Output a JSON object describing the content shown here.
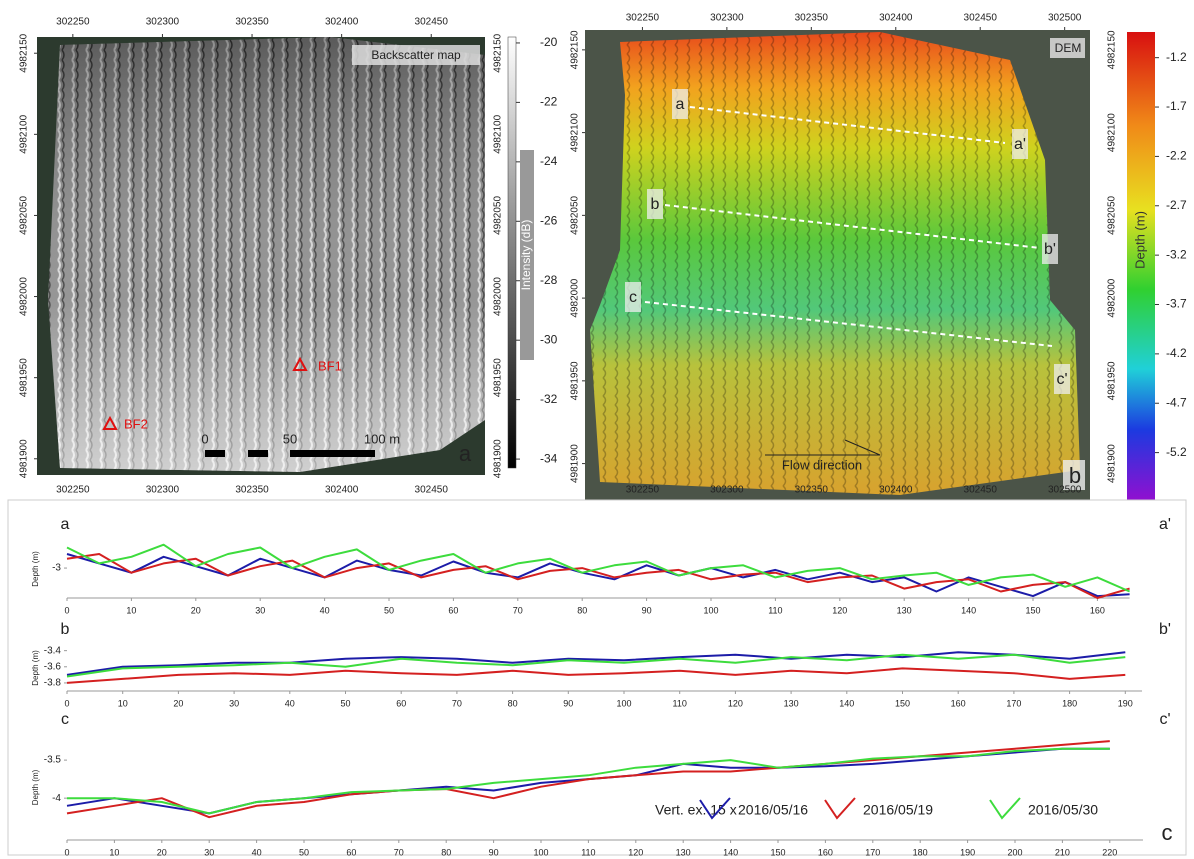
{
  "backscatter_map": {
    "title": "Backscatter map",
    "panel": "a",
    "xlim": [
      302230,
      302480
    ],
    "xticks": [
      302250,
      302300,
      302350,
      302400,
      302450
    ],
    "ylim": [
      4982160,
      4981890
    ],
    "yticks": [
      4982150,
      4982100,
      4982050,
      4982000,
      4981950,
      4981900
    ],
    "markers": [
      "BF1",
      "BF2"
    ],
    "scale_bar": {
      "ticks": [
        0,
        50
      ],
      "label": "100 m"
    },
    "colorbar": {
      "label": "Intensity (dB)",
      "lim": [
        -19.8,
        -34.3
      ],
      "ticks": [
        -20,
        -22,
        -24,
        -26,
        -28,
        -30,
        -32,
        -34
      ]
    }
  },
  "dem": {
    "title": "DEM",
    "panel": "b",
    "xlim": [
      302216,
      302515
    ],
    "xticks": [
      302250,
      302300,
      302350,
      302400,
      302450,
      302500
    ],
    "ylim": [
      4982162,
      4981878
    ],
    "yticks": [
      4982150,
      4982100,
      4982050,
      4982000,
      4981950,
      4981900
    ],
    "profile_ends": [
      "a",
      "a'",
      "b",
      "b'",
      "c",
      "c'"
    ],
    "annotation": "Flow direction",
    "colorbar": {
      "label": "Depth (m)",
      "lim": [
        -0.94,
        -5.68
      ],
      "ticks": [
        -1.2,
        -1.7,
        -2.2,
        -2.7,
        -3.2,
        -3.7,
        -4.2,
        -4.7,
        -5.2
      ]
    }
  },
  "chart_data": [
    {
      "type": "line",
      "start_label": "a",
      "end_label": "a'",
      "y_label": "Depth (m)",
      "x": [
        0,
        5,
        10,
        15,
        20,
        25,
        30,
        35,
        40,
        45,
        50,
        55,
        60,
        65,
        70,
        75,
        80,
        85,
        90,
        95,
        100,
        105,
        110,
        115,
        120,
        125,
        130,
        135,
        140,
        145,
        150,
        155,
        160,
        165
      ],
      "xlim": [
        0,
        165
      ],
      "xticks": [
        0,
        10,
        20,
        30,
        40,
        50,
        60,
        70,
        80,
        90,
        100,
        110,
        120,
        130,
        140,
        150,
        160
      ],
      "ylim": [
        -3.32,
        -2.7
      ],
      "yticks": [
        -3
      ],
      "series": [
        {
          "color": "#1c1ca8",
          "values": [
            -2.85,
            -2.95,
            -3.05,
            -2.88,
            -2.98,
            -3.08,
            -2.9,
            -3.0,
            -3.1,
            -2.92,
            -3.02,
            -3.08,
            -2.93,
            -3.05,
            -3.1,
            -2.95,
            -3.05,
            -3.12,
            -2.97,
            -3.08,
            -3.0,
            -3.1,
            -3.02,
            -3.12,
            -3.05,
            -3.15,
            -3.1,
            -3.25,
            -3.1,
            -3.2,
            -3.3,
            -3.15,
            -3.3,
            -3.28
          ]
        },
        {
          "color": "#d42020",
          "values": [
            -2.9,
            -2.85,
            -3.05,
            -2.95,
            -2.9,
            -3.08,
            -2.98,
            -2.92,
            -3.1,
            -3.0,
            -2.95,
            -3.1,
            -3.02,
            -2.98,
            -3.12,
            -3.03,
            -3.0,
            -3.1,
            -3.05,
            -3.02,
            -3.12,
            -3.07,
            -3.05,
            -3.15,
            -3.1,
            -3.08,
            -3.22,
            -3.15,
            -3.12,
            -3.25,
            -3.18,
            -3.15,
            -3.32,
            -3.22
          ]
        },
        {
          "color": "#3ddc3d",
          "values": [
            -2.78,
            -2.95,
            -2.88,
            -2.75,
            -2.98,
            -2.85,
            -2.78,
            -3.0,
            -2.88,
            -2.8,
            -3.02,
            -2.92,
            -2.85,
            -3.05,
            -2.95,
            -2.9,
            -3.05,
            -2.97,
            -2.93,
            -3.08,
            -3.0,
            -2.97,
            -3.1,
            -3.03,
            -3.0,
            -3.12,
            -3.08,
            -3.05,
            -3.18,
            -3.1,
            -3.07,
            -3.2,
            -3.1,
            -3.25
          ]
        }
      ]
    },
    {
      "type": "line",
      "start_label": "b",
      "end_label": "b'",
      "y_label": "Depth (m)",
      "x": [
        0,
        10,
        20,
        30,
        40,
        50,
        60,
        70,
        80,
        90,
        100,
        110,
        120,
        130,
        140,
        150,
        160,
        170,
        180,
        190
      ],
      "xlim": [
        0,
        193
      ],
      "xticks": [
        0,
        10,
        20,
        30,
        40,
        50,
        60,
        70,
        80,
        90,
        100,
        110,
        120,
        130,
        140,
        150,
        160,
        170,
        180,
        190
      ],
      "ylim": [
        -3.9,
        -3.33
      ],
      "yticks": [
        -3.4,
        -3.6,
        -3.8
      ],
      "series": [
        {
          "color": "#1c1ca8",
          "values": [
            -3.7,
            -3.6,
            -3.58,
            -3.55,
            -3.55,
            -3.5,
            -3.48,
            -3.5,
            -3.55,
            -3.5,
            -3.52,
            -3.48,
            -3.45,
            -3.5,
            -3.45,
            -3.48,
            -3.42,
            -3.45,
            -3.5,
            -3.42
          ]
        },
        {
          "color": "#d42020",
          "values": [
            -3.8,
            -3.75,
            -3.7,
            -3.68,
            -3.7,
            -3.65,
            -3.68,
            -3.7,
            -3.65,
            -3.7,
            -3.68,
            -3.65,
            -3.7,
            -3.65,
            -3.68,
            -3.62,
            -3.65,
            -3.68,
            -3.75,
            -3.7
          ]
        },
        {
          "color": "#3ddc3d",
          "values": [
            -3.72,
            -3.62,
            -3.6,
            -3.58,
            -3.55,
            -3.6,
            -3.5,
            -3.55,
            -3.58,
            -3.52,
            -3.55,
            -3.5,
            -3.55,
            -3.48,
            -3.52,
            -3.45,
            -3.5,
            -3.45,
            -3.55,
            -3.48
          ]
        }
      ]
    },
    {
      "type": "line",
      "start_label": "c",
      "end_label": "c'",
      "y_label": "Depth (m)",
      "x": [
        0,
        10,
        20,
        30,
        40,
        50,
        60,
        70,
        80,
        90,
        100,
        110,
        120,
        130,
        140,
        150,
        160,
        170,
        180,
        190,
        200,
        210,
        220
      ],
      "xlim": [
        0,
        227
      ],
      "xticks": [
        0,
        10,
        20,
        30,
        40,
        50,
        60,
        70,
        80,
        90,
        100,
        110,
        120,
        130,
        140,
        150,
        160,
        170,
        180,
        190,
        200,
        210,
        220
      ],
      "ylim": [
        -4.55,
        -3.17
      ],
      "yticks": [
        -3.5,
        -4
      ],
      "series": [
        {
          "name": "2016/05/16",
          "color": "#1c1ca8",
          "values": [
            -4.1,
            -4.0,
            -4.1,
            -4.2,
            -4.05,
            -4.0,
            -3.95,
            -3.9,
            -3.85,
            -3.9,
            -3.8,
            -3.75,
            -3.7,
            -3.55,
            -3.6,
            -3.6,
            -3.58,
            -3.55,
            -3.5,
            -3.45,
            -3.4,
            -3.35,
            -3.35
          ]
        },
        {
          "name": "2016/05/19",
          "color": "#d42020",
          "values": [
            -4.2,
            -4.1,
            -4.0,
            -4.25,
            -4.1,
            -4.05,
            -3.95,
            -3.9,
            -3.88,
            -4.0,
            -3.85,
            -3.75,
            -3.7,
            -3.65,
            -3.65,
            -3.6,
            -3.55,
            -3.5,
            -3.45,
            -3.4,
            -3.35,
            -3.3,
            -3.25
          ]
        },
        {
          "name": "2016/05/30",
          "color": "#3ddc3d",
          "values": [
            -4.0,
            -4.0,
            -4.05,
            -4.2,
            -4.05,
            -4.0,
            -3.92,
            -3.9,
            -3.88,
            -3.8,
            -3.75,
            -3.7,
            -3.6,
            -3.55,
            -3.5,
            -3.6,
            -3.55,
            -3.48,
            -3.45,
            -3.45,
            -3.38,
            -3.35,
            -3.35
          ]
        }
      ]
    }
  ],
  "legend_note": "Vert. ex. 15 x",
  "panel_c": "c"
}
